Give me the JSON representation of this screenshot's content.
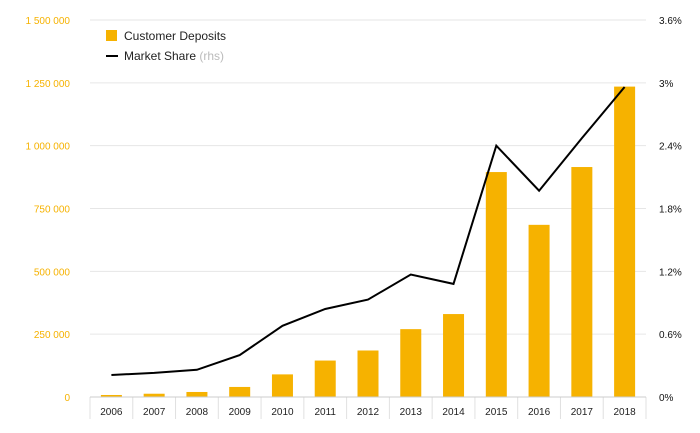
{
  "chart_data": {
    "type": "bar",
    "categories": [
      "2006",
      "2007",
      "2008",
      "2009",
      "2010",
      "2011",
      "2012",
      "2013",
      "2014",
      "2015",
      "2016",
      "2017",
      "2018"
    ],
    "series": [
      {
        "name": "Customer Deposits",
        "type": "bar",
        "axis": "left",
        "color": "#f6b200",
        "values": [
          8000,
          13000,
          20000,
          40000,
          90000,
          145000,
          185000,
          270000,
          330000,
          895000,
          685000,
          915000,
          1235000
        ]
      },
      {
        "name": "Market Share",
        "name_suffix": "(rhs)",
        "type": "line",
        "axis": "right",
        "color": "#000000",
        "values": [
          0.21,
          0.23,
          0.26,
          0.4,
          0.68,
          0.84,
          0.93,
          1.17,
          1.08,
          2.4,
          1.97,
          2.47,
          2.96
        ]
      }
    ],
    "y_left": {
      "ylim": [
        0,
        1500000
      ],
      "ticks": [
        0,
        250000,
        500000,
        750000,
        1000000,
        1250000,
        1500000
      ],
      "tick_labels": [
        "0",
        "250 000",
        "500 000",
        "750 000",
        "1 000 000",
        "1 250 000",
        "1 500 000"
      ],
      "color": "#f6b200"
    },
    "y_right": {
      "ylim": [
        0,
        3.6
      ],
      "ticks": [
        0,
        0.6,
        1.2,
        1.8,
        2.4,
        3.0,
        3.6
      ],
      "tick_labels": [
        "0%",
        "0.6%",
        "1.2%",
        "1.8%",
        "2.4%",
        "3%",
        "3.6%"
      ],
      "color": "#111111"
    },
    "grid": true,
    "legend_position": "top-left",
    "title": "",
    "xlabel": "",
    "ylabel": ""
  }
}
